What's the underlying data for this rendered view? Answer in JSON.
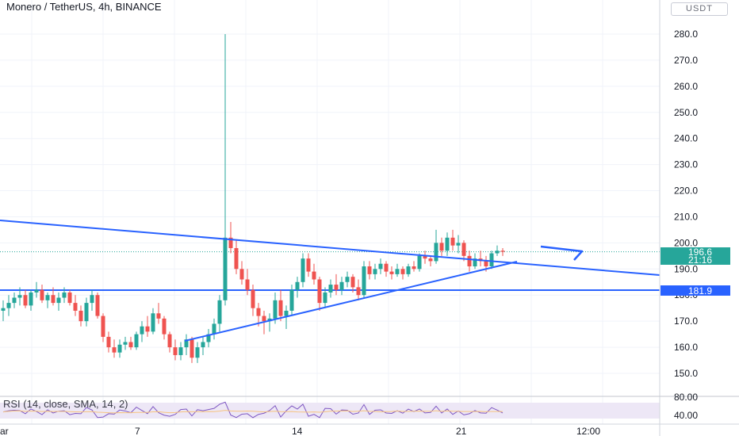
{
  "header": {
    "title": "Monero / TetherUS, 4h, BINANCE",
    "currency": "USDT"
  },
  "price_axis": {
    "ticks": [
      "280.0",
      "270.0",
      "260.0",
      "250.0",
      "240.0",
      "230.0",
      "220.0",
      "210.0",
      "200.0",
      "190.0",
      "180.0",
      "170.0",
      "160.0",
      "150.0"
    ],
    "last_price": "196.6",
    "countdown": "21:16",
    "level_price": "181.9"
  },
  "rsi": {
    "label": "RSI (14, close, SMA, 14, 2)",
    "ticks": [
      "80.00",
      "40.00"
    ]
  },
  "time_axis": {
    "labels": [
      "ar",
      "7",
      "14",
      "21",
      "12:00"
    ]
  },
  "colors": {
    "up": "#26a69a",
    "down": "#ef5350",
    "trendline": "#2962ff",
    "rsi_line": "#7e57c2",
    "rsi_band": "#ede7f6"
  },
  "chart_data": {
    "type": "candlestick",
    "symbol": "XMR/USDT",
    "timeframe": "4h",
    "ylim": [
      145,
      285
    ],
    "grid": true,
    "series": [
      {
        "name": "",
        "values": [
          [
            174,
            178,
            170,
            175
          ],
          [
            175,
            180,
            172,
            177
          ],
          [
            177,
            181,
            175,
            179
          ],
          [
            179,
            183,
            176,
            180
          ],
          [
            180,
            182,
            175,
            176
          ],
          [
            176,
            182,
            174,
            181
          ],
          [
            181,
            185,
            179,
            182
          ],
          [
            182,
            184,
            177,
            178
          ],
          [
            178,
            181,
            175,
            180
          ],
          [
            180,
            183,
            176,
            177
          ],
          [
            177,
            181,
            174,
            179
          ],
          [
            179,
            183,
            177,
            181
          ],
          [
            181,
            182,
            176,
            177
          ],
          [
            177,
            180,
            172,
            174
          ],
          [
            174,
            176,
            168,
            170
          ],
          [
            170,
            179,
            168,
            177
          ],
          [
            177,
            182,
            174,
            180
          ],
          [
            180,
            181,
            171,
            172
          ],
          [
            172,
            173,
            162,
            164
          ],
          [
            164,
            166,
            158,
            160
          ],
          [
            160,
            163,
            156,
            158
          ],
          [
            158,
            163,
            156,
            161
          ],
          [
            161,
            164,
            159,
            162
          ],
          [
            162,
            164,
            159,
            160
          ],
          [
            160,
            166,
            159,
            165
          ],
          [
            165,
            170,
            162,
            168
          ],
          [
            168,
            172,
            164,
            166
          ],
          [
            166,
            175,
            165,
            173
          ],
          [
            173,
            177,
            169,
            171
          ],
          [
            171,
            172,
            163,
            165
          ],
          [
            165,
            166,
            158,
            160
          ],
          [
            160,
            163,
            155,
            157
          ],
          [
            157,
            162,
            155,
            160
          ],
          [
            160,
            165,
            157,
            163
          ],
          [
            163,
            164,
            154,
            156
          ],
          [
            156,
            162,
            154,
            160
          ],
          [
            160,
            164,
            157,
            162
          ],
          [
            162,
            167,
            160,
            165
          ],
          [
            165,
            171,
            163,
            169
          ],
          [
            169,
            180,
            166,
            178
          ],
          [
            178,
            280,
            176,
            202
          ],
          [
            202,
            208,
            196,
            198
          ],
          [
            198,
            201,
            188,
            190
          ],
          [
            190,
            193,
            184,
            186
          ],
          [
            186,
            190,
            180,
            182
          ],
          [
            182,
            184,
            172,
            175
          ],
          [
            175,
            177,
            168,
            172
          ],
          [
            172,
            174,
            165,
            170
          ],
          [
            170,
            173,
            166,
            171
          ],
          [
            171,
            181,
            169,
            178
          ],
          [
            178,
            182,
            170,
            172
          ],
          [
            172,
            176,
            167,
            174
          ],
          [
            174,
            184,
            172,
            182
          ],
          [
            182,
            187,
            179,
            185
          ],
          [
            185,
            196,
            183,
            194
          ],
          [
            194,
            196,
            187,
            189
          ],
          [
            189,
            192,
            184,
            186
          ],
          [
            186,
            187,
            174,
            177
          ],
          [
            177,
            183,
            175,
            181
          ],
          [
            181,
            186,
            179,
            184
          ],
          [
            184,
            188,
            180,
            182
          ],
          [
            182,
            187,
            180,
            185
          ],
          [
            185,
            189,
            183,
            187
          ],
          [
            187,
            188,
            181,
            183
          ],
          [
            183,
            186,
            178,
            180
          ],
          [
            180,
            193,
            179,
            191
          ],
          [
            191,
            193,
            186,
            188
          ],
          [
            188,
            192,
            186,
            190
          ],
          [
            190,
            194,
            188,
            192
          ],
          [
            192,
            193,
            187,
            189
          ],
          [
            189,
            191,
            186,
            188
          ],
          [
            188,
            192,
            187,
            190
          ],
          [
            190,
            191,
            186,
            188
          ],
          [
            188,
            192,
            187,
            191
          ],
          [
            191,
            193,
            189,
            190
          ],
          [
            190,
            196,
            189,
            195
          ],
          [
            195,
            197,
            192,
            194
          ],
          [
            194,
            195,
            191,
            193
          ],
          [
            193,
            205,
            192,
            200
          ],
          [
            200,
            202,
            195,
            197
          ],
          [
            197,
            204,
            195,
            202
          ],
          [
            202,
            205,
            197,
            199
          ],
          [
            199,
            203,
            196,
            200
          ],
          [
            200,
            201,
            193,
            195
          ],
          [
            195,
            197,
            189,
            191
          ],
          [
            191,
            196,
            190,
            194
          ],
          [
            194,
            197,
            191,
            193
          ],
          [
            193,
            195,
            189,
            191
          ],
          [
            191,
            197,
            190,
            196
          ],
          [
            196,
            199,
            195,
            197
          ],
          [
            197,
            198,
            195,
            196.6
          ]
        ]
      }
    ]
  }
}
